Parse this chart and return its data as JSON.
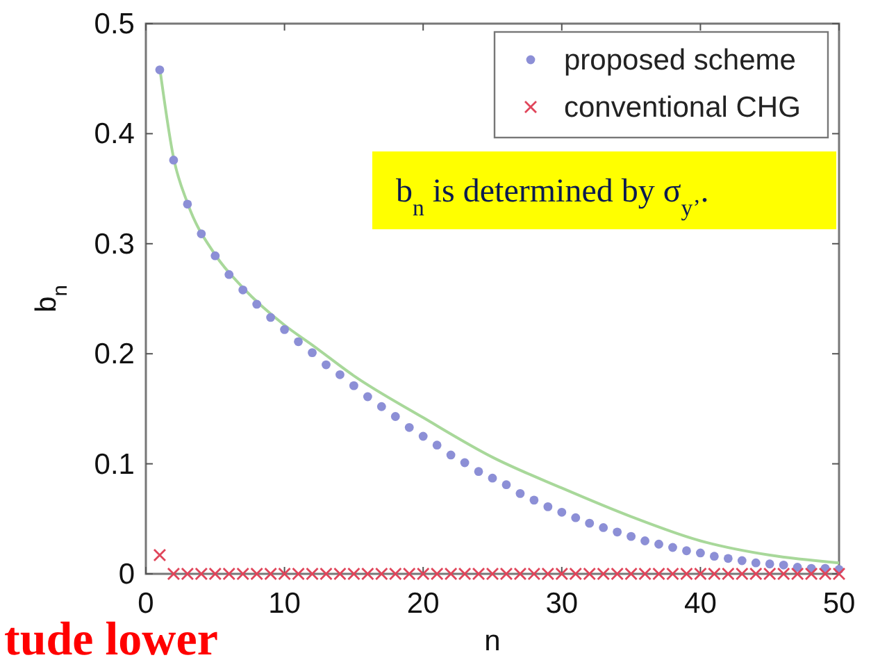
{
  "chart_data": {
    "type": "scatter",
    "xlabel": "n",
    "ylabel": "b$_{n}$",
    "xlim": [
      0,
      50
    ],
    "ylim": [
      0,
      0.5
    ],
    "xticks": [
      0,
      10,
      20,
      30,
      40,
      50
    ],
    "yticks": [
      0,
      0.1,
      0.2,
      0.3,
      0.4,
      0.5
    ],
    "grid": false,
    "legend": "top right",
    "annotations": [
      "b$_{n}$ is determined by σ$_{y’}$.",
      "tude lower"
    ],
    "series": [
      {
        "name": "proposed scheme",
        "marker": "circle",
        "color": "#8c8fd6",
        "x": [
          1,
          2,
          3,
          4,
          5,
          6,
          7,
          8,
          9,
          10,
          11,
          12,
          13,
          14,
          15,
          16,
          17,
          18,
          19,
          20,
          21,
          22,
          23,
          24,
          25,
          26,
          27,
          28,
          29,
          30,
          31,
          32,
          33,
          34,
          35,
          36,
          37,
          38,
          39,
          40,
          41,
          42,
          43,
          44,
          45,
          46,
          47,
          48,
          49,
          50
        ],
        "values": [
          0.458,
          0.376,
          0.336,
          0.309,
          0.289,
          0.272,
          0.258,
          0.245,
          0.233,
          0.222,
          0.211,
          0.201,
          0.19,
          0.181,
          0.171,
          0.161,
          0.152,
          0.143,
          0.133,
          0.125,
          0.117,
          0.108,
          0.101,
          0.093,
          0.087,
          0.081,
          0.073,
          0.067,
          0.061,
          0.056,
          0.051,
          0.046,
          0.042,
          0.038,
          0.034,
          0.03,
          0.027,
          0.024,
          0.021,
          0.019,
          0.016,
          0.014,
          0.012,
          0.01,
          0.009,
          0.008,
          0.006,
          0.005,
          0.005,
          0.004
        ]
      },
      {
        "name": "conventional CHG",
        "marker": "cross",
        "color": "#e0455a",
        "x": [
          1,
          2,
          3,
          4,
          5,
          6,
          7,
          8,
          9,
          10,
          11,
          12,
          13,
          14,
          15,
          16,
          17,
          18,
          19,
          20,
          21,
          22,
          23,
          24,
          25,
          26,
          27,
          28,
          29,
          30,
          31,
          32,
          33,
          34,
          35,
          36,
          37,
          38,
          39,
          40,
          41,
          42,
          43,
          44,
          45,
          46,
          47,
          48,
          49,
          50
        ],
        "values": [
          0.017,
          0,
          0,
          0,
          0,
          0,
          0,
          0,
          0,
          0,
          0,
          0,
          0,
          0,
          0,
          0,
          0,
          0,
          0,
          0,
          0,
          0,
          0,
          0,
          0,
          0,
          0,
          0,
          0,
          0,
          0,
          0,
          0,
          0,
          0,
          0,
          0,
          0,
          0,
          0,
          0,
          0,
          0,
          0,
          0,
          0,
          0,
          0,
          0,
          0
        ]
      },
      {
        "type": "line",
        "marker": "none",
        "line_style": "solid",
        "color": "#a8d89a",
        "x": [
          1,
          2,
          3,
          5,
          7,
          10,
          12,
          15,
          20,
          25,
          30,
          35,
          40,
          45,
          50
        ],
        "values": [
          0.46,
          0.378,
          0.337,
          0.29,
          0.26,
          0.226,
          0.208,
          0.18,
          0.142,
          0.106,
          0.078,
          0.052,
          0.03,
          0.017,
          0.01
        ]
      }
    ]
  }
}
